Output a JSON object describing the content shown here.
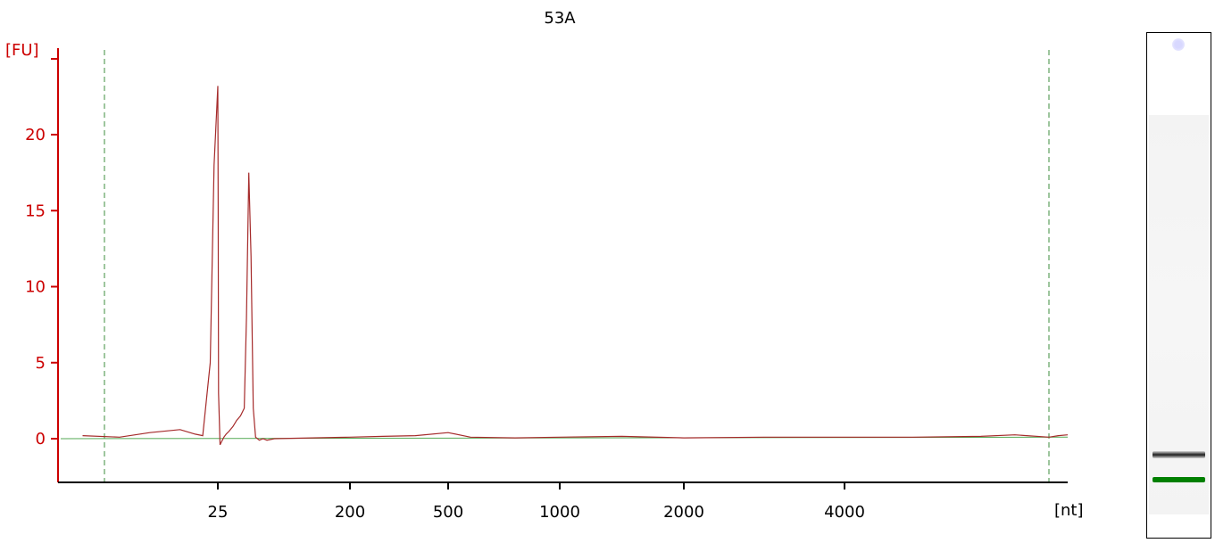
{
  "colors": {
    "trace": "#a52a2a",
    "baseline": "#55aa55",
    "yaxis": "#cc0000",
    "xaxis": "#000000",
    "boundary": "#3c8c3c",
    "gel_band_dark": "#1e1e1e",
    "gel_band_marker": "#008000"
  },
  "chart_data": {
    "type": "line",
    "title": "53A",
    "ylabel": "[FU]",
    "xlabel": "[nt]",
    "ylim": [
      -3,
      25.5
    ],
    "yticks": [
      0,
      5,
      10,
      15,
      20
    ],
    "ytick_labels": [
      "0",
      "5",
      "10",
      "15",
      "20"
    ],
    "xticks": [
      25,
      200,
      500,
      1000,
      2000,
      4000
    ],
    "xtick_labels": [
      "25",
      "200",
      "500",
      "1000",
      "2000",
      "4000"
    ],
    "x_scale": "ladder (non-linear)",
    "grid": false,
    "legend": "none",
    "series": [
      {
        "role": "electropherogram trace",
        "x": [
          9,
          12,
          16,
          20,
          22,
          23,
          24,
          24.5,
          25,
          25.5,
          26,
          28,
          30,
          33,
          36,
          40,
          45,
          50,
          55,
          60,
          63,
          66,
          69,
          72,
          75,
          80,
          85,
          90,
          100,
          150,
          200,
          300,
          400,
          500,
          600,
          800,
          1000,
          1500,
          2000,
          3000,
          4000,
          5000,
          6000,
          6500,
          7000,
          7500,
          8000
        ],
        "y": [
          0.2,
          0.1,
          0.4,
          0.6,
          0.3,
          0.2,
          5.0,
          18.0,
          23.2,
          15.0,
          3.0,
          -0.4,
          -0.2,
          0.1,
          0.3,
          0.5,
          0.8,
          1.2,
          1.5,
          2.0,
          8.0,
          17.5,
          12.0,
          2.0,
          0.1,
          -0.1,
          0.0,
          -0.1,
          0.0,
          0.05,
          0.1,
          0.15,
          0.2,
          0.4,
          0.1,
          0.05,
          0.1,
          0.15,
          0.05,
          0.1,
          0.1,
          0.1,
          0.15,
          0.25,
          0.1,
          0.2,
          0.25
        ]
      },
      {
        "role": "baseline",
        "x": [
          8,
          8000
        ],
        "y": [
          0.0,
          0.1
        ]
      }
    ],
    "boundaries": [
      10,
      7000
    ]
  },
  "gel": {
    "bands": [
      {
        "position": 0.77,
        "tone": "dark"
      },
      {
        "position": 0.82,
        "tone": "marker"
      }
    ]
  }
}
